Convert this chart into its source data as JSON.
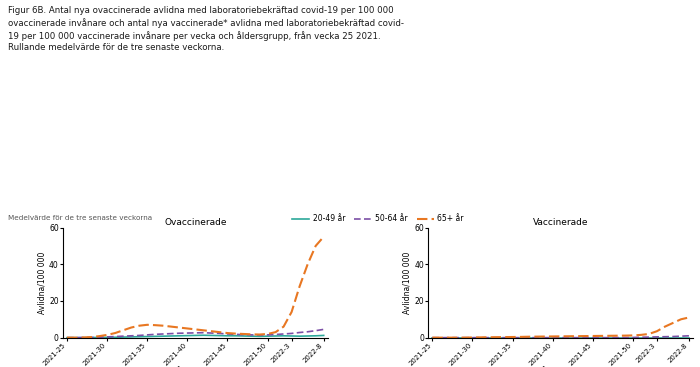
{
  "title_text": "Figur 6B. Antal nya ovaccinerade avlidna med laboratoriebekräftad covid-19 per 100 000\novaccinerade invånare och antal nya vaccinerade* avlidna med laboratoriebekräftad covid-\n19 per 100 000 vaccinerade invånare per vecka och åldersgrupp, från vecka 25 2021.\nRullande medelvärde för de tre senaste veckorna.",
  "subtitle": "Medelvärde för de tre senaste veckorna",
  "left_title": "Ovaccinerade",
  "right_title": "Vaccinerade",
  "ylabel": "Avlidna/100 000",
  "xlabel": "År - vecka",
  "ylim": [
    0,
    60
  ],
  "yticks": [
    0,
    20,
    40,
    60
  ],
  "xtick_labels": [
    "2021-25",
    "2021-30",
    "2021-35",
    "2021-40",
    "2021-45",
    "2021-50",
    "2022-3",
    "2022-8"
  ],
  "legend_labels": [
    "20-49 år",
    "50-64 år",
    "65+ år"
  ],
  "colors": [
    "#2ca89a",
    "#7b4fa6",
    "#e87722"
  ],
  "unvacc_20_49": [
    0.0,
    0.0,
    0.0,
    0.05,
    0.1,
    0.15,
    0.2,
    0.3,
    0.4,
    0.5,
    0.6,
    0.7,
    0.8,
    0.9,
    1.0,
    1.1,
    1.2,
    1.3,
    1.2,
    1.1,
    1.0,
    1.0,
    0.9,
    0.8,
    0.7,
    0.8,
    0.9,
    1.0,
    0.9,
    0.8,
    0.9,
    1.0,
    1.2
  ],
  "unvacc_50_64": [
    0.0,
    0.0,
    0.05,
    0.1,
    0.2,
    0.4,
    0.6,
    0.8,
    1.0,
    1.2,
    1.5,
    1.8,
    2.0,
    2.2,
    2.4,
    2.5,
    2.6,
    2.7,
    2.5,
    2.3,
    2.0,
    1.8,
    1.6,
    1.5,
    1.4,
    1.5,
    1.7,
    2.0,
    2.3,
    2.8,
    3.2,
    3.8,
    4.5
  ],
  "unvacc_65plus": [
    0.0,
    0.0,
    0.1,
    0.3,
    0.8,
    1.5,
    2.5,
    4.0,
    5.5,
    6.5,
    7.0,
    6.8,
    6.5,
    6.0,
    5.5,
    5.0,
    4.5,
    4.0,
    3.5,
    3.0,
    2.5,
    2.2,
    2.0,
    1.8,
    1.7,
    2.0,
    3.0,
    6.0,
    14.0,
    28.0,
    40.0,
    50.0,
    55.0
  ],
  "vacc_20_49": [
    0.0,
    0.0,
    0.0,
    0.0,
    0.0,
    0.0,
    0.0,
    0.0,
    0.0,
    0.0,
    0.0,
    0.0,
    0.0,
    0.0,
    0.0,
    0.0,
    0.0,
    0.0,
    0.0,
    0.0,
    0.0,
    0.0,
    0.0,
    0.0,
    0.0,
    0.0,
    0.0,
    0.0,
    0.0,
    0.0,
    0.0,
    0.0,
    0.0
  ],
  "vacc_50_64": [
    0.0,
    0.0,
    0.0,
    0.0,
    0.0,
    0.0,
    0.0,
    0.0,
    0.0,
    0.0,
    0.0,
    0.0,
    0.0,
    0.0,
    0.0,
    0.0,
    0.0,
    0.0,
    0.0,
    0.0,
    0.0,
    0.0,
    0.0,
    0.0,
    0.0,
    0.1,
    0.2,
    0.3,
    0.4,
    0.5,
    0.6,
    0.8,
    1.0
  ],
  "vacc_65plus": [
    0.0,
    0.0,
    0.0,
    0.0,
    0.0,
    0.1,
    0.15,
    0.2,
    0.25,
    0.3,
    0.35,
    0.4,
    0.5,
    0.55,
    0.6,
    0.65,
    0.7,
    0.75,
    0.8,
    0.85,
    0.9,
    0.95,
    1.0,
    1.05,
    1.1,
    1.2,
    1.5,
    2.0,
    3.5,
    6.0,
    8.0,
    10.0,
    11.0
  ],
  "n_points": 33,
  "background_color": "#ffffff"
}
